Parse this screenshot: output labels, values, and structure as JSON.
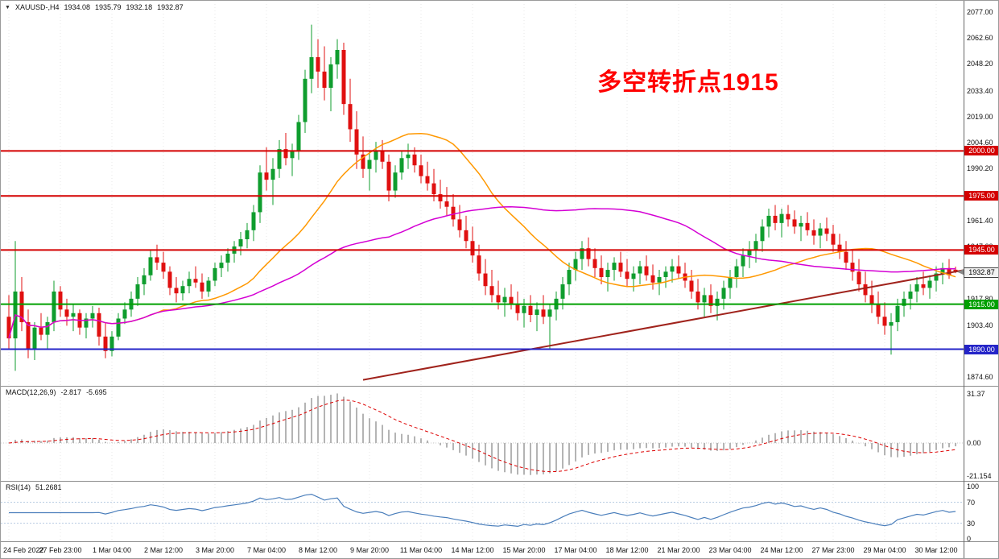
{
  "header": {
    "collapse_icon": "▼",
    "symbol": "XAUUSD-,H4",
    "open": "1934.08",
    "high": "1935.79",
    "low": "1932.18",
    "close": "1932.87"
  },
  "chart_data": {
    "type": "candlestick",
    "annotation": {
      "text": "多空转折点1915",
      "color": "#ff0000"
    },
    "price_axis": {
      "labels": [
        "2077.00",
        "2062.60",
        "2048.20",
        "2033.40",
        "2019.00",
        "2004.60",
        "1990.20",
        "1975.80",
        "1961.40",
        "1947.00",
        "1932.60",
        "1917.80",
        "1903.40",
        "1889.00",
        "1874.60"
      ],
      "top_value": 2077.0,
      "step": 14.4
    },
    "time_axis": {
      "labels": [
        "24 Feb 2022",
        "27 Feb 23:00",
        "1 Mar 04:00",
        "2 Mar 12:00",
        "3 Mar 20:00",
        "7 Mar 04:00",
        "8 Mar 12:00",
        "9 Mar 20:00",
        "11 Mar 04:00",
        "14 Mar 12:00",
        "15 Mar 20:00",
        "17 Mar 04:00",
        "18 Mar 12:00",
        "21 Mar 20:00",
        "23 Mar 04:00",
        "24 Mar 12:00",
        "27 Mar 23:00",
        "29 Mar 04:00",
        "30 Mar 12:00"
      ],
      "label_every_bars": 8
    },
    "candles": [
      [
        1908,
        1920,
        1890,
        1896
      ],
      [
        1896,
        1950,
        1878,
        1922
      ],
      [
        1922,
        1930,
        1900,
        1905
      ],
      [
        1905,
        1912,
        1885,
        1890
      ],
      [
        1890,
        1905,
        1884,
        1902
      ],
      [
        1902,
        1910,
        1895,
        1898
      ],
      [
        1898,
        1908,
        1890,
        1905
      ],
      [
        1905,
        1928,
        1900,
        1922
      ],
      [
        1922,
        1925,
        1908,
        1912
      ],
      [
        1912,
        1918,
        1903,
        1908
      ],
      [
        1908,
        1915,
        1900,
        1910
      ],
      [
        1910,
        1912,
        1898,
        1902
      ],
      [
        1902,
        1910,
        1896,
        1907
      ],
      [
        1907,
        1914,
        1902,
        1910
      ],
      [
        1910,
        1913,
        1892,
        1897
      ],
      [
        1897,
        1905,
        1885,
        1889
      ],
      [
        1889,
        1900,
        1886,
        1897
      ],
      [
        1897,
        1910,
        1895,
        1907
      ],
      [
        1907,
        1916,
        1904,
        1912
      ],
      [
        1912,
        1922,
        1908,
        1918
      ],
      [
        1918,
        1930,
        1914,
        1926
      ],
      [
        1926,
        1935,
        1920,
        1931
      ],
      [
        1931,
        1945,
        1928,
        1941
      ],
      [
        1941,
        1948,
        1934,
        1938
      ],
      [
        1938,
        1944,
        1929,
        1933
      ],
      [
        1933,
        1936,
        1920,
        1924
      ],
      [
        1924,
        1930,
        1916,
        1921
      ],
      [
        1921,
        1928,
        1917,
        1925
      ],
      [
        1925,
        1933,
        1921,
        1929
      ],
      [
        1929,
        1936,
        1924,
        1927
      ],
      [
        1927,
        1932,
        1918,
        1922
      ],
      [
        1922,
        1930,
        1919,
        1928
      ],
      [
        1928,
        1938,
        1925,
        1935
      ],
      [
        1935,
        1942,
        1930,
        1938
      ],
      [
        1938,
        1946,
        1933,
        1943
      ],
      [
        1943,
        1950,
        1938,
        1947
      ],
      [
        1947,
        1955,
        1942,
        1951
      ],
      [
        1951,
        1960,
        1946,
        1956
      ],
      [
        1956,
        1970,
        1950,
        1966
      ],
      [
        1966,
        1992,
        1960,
        1988
      ],
      [
        1988,
        2002,
        1978,
        1984
      ],
      [
        1984,
        1996,
        1970,
        1990
      ],
      [
        1990,
        2006,
        1985,
        2001
      ],
      [
        2001,
        2010,
        1992,
        1996
      ],
      [
        1996,
        2004,
        1986,
        2000
      ],
      [
        2000,
        2020,
        1995,
        2016
      ],
      [
        2016,
        2045,
        2010,
        2040
      ],
      [
        2040,
        2070,
        2032,
        2052
      ],
      [
        2052,
        2062,
        2035,
        2044
      ],
      [
        2044,
        2058,
        2028,
        2035
      ],
      [
        2035,
        2052,
        2022,
        2048
      ],
      [
        2048,
        2062,
        2040,
        2056
      ],
      [
        2056,
        2060,
        2020,
        2026
      ],
      [
        2026,
        2040,
        2005,
        2012
      ],
      [
        2012,
        2022,
        1990,
        1998
      ],
      [
        1998,
        2008,
        1985,
        1990
      ],
      [
        1990,
        2000,
        1978,
        1995
      ],
      [
        1995,
        2005,
        1988,
        2000
      ],
      [
        2000,
        2006,
        1990,
        1994
      ],
      [
        1994,
        1998,
        1972,
        1978
      ],
      [
        1978,
        1992,
        1974,
        1988
      ],
      [
        1988,
        2000,
        1984,
        1996
      ],
      [
        1996,
        2004,
        1990,
        1998
      ],
      [
        1998,
        2002,
        1988,
        1992
      ],
      [
        1992,
        1998,
        1982,
        1986
      ],
      [
        1986,
        1994,
        1978,
        1982
      ],
      [
        1982,
        1990,
        1972,
        1976
      ],
      [
        1976,
        1984,
        1968,
        1972
      ],
      [
        1972,
        1980,
        1964,
        1969
      ],
      [
        1969,
        1976,
        1958,
        1962
      ],
      [
        1962,
        1970,
        1952,
        1956
      ],
      [
        1956,
        1964,
        1946,
        1950
      ],
      [
        1950,
        1958,
        1938,
        1942
      ],
      [
        1942,
        1948,
        1928,
        1932
      ],
      [
        1932,
        1940,
        1920,
        1925
      ],
      [
        1925,
        1934,
        1916,
        1920
      ],
      [
        1920,
        1928,
        1912,
        1916
      ],
      [
        1916,
        1924,
        1908,
        1919
      ],
      [
        1919,
        1926,
        1912,
        1915
      ],
      [
        1915,
        1922,
        1906,
        1910
      ],
      [
        1910,
        1918,
        1902,
        1914
      ],
      [
        1914,
        1920,
        1905,
        1909
      ],
      [
        1909,
        1916,
        1900,
        1912
      ],
      [
        1912,
        1920,
        1904,
        1908
      ],
      [
        1908,
        1915,
        1890,
        1912
      ],
      [
        1912,
        1922,
        1906,
        1918
      ],
      [
        1918,
        1930,
        1912,
        1926
      ],
      [
        1926,
        1938,
        1920,
        1934
      ],
      [
        1934,
        1944,
        1928,
        1940
      ],
      [
        1940,
        1950,
        1934,
        1946
      ],
      [
        1946,
        1952,
        1936,
        1940
      ],
      [
        1940,
        1946,
        1930,
        1935
      ],
      [
        1935,
        1942,
        1926,
        1930
      ],
      [
        1930,
        1938,
        1922,
        1934
      ],
      [
        1934,
        1941,
        1928,
        1938
      ],
      [
        1938,
        1944,
        1930,
        1933
      ],
      [
        1933,
        1940,
        1925,
        1929
      ],
      [
        1929,
        1936,
        1922,
        1932
      ],
      [
        1932,
        1939,
        1926,
        1936
      ],
      [
        1936,
        1942,
        1928,
        1931
      ],
      [
        1931,
        1937,
        1923,
        1927
      ],
      [
        1927,
        1934,
        1920,
        1930
      ],
      [
        1930,
        1936,
        1924,
        1933
      ],
      [
        1933,
        1940,
        1927,
        1936
      ],
      [
        1936,
        1942,
        1929,
        1932
      ],
      [
        1932,
        1938,
        1924,
        1928
      ],
      [
        1928,
        1934,
        1918,
        1922
      ],
      [
        1922,
        1929,
        1912,
        1916
      ],
      [
        1916,
        1924,
        1908,
        1920
      ],
      [
        1920,
        1926,
        1910,
        1914
      ],
      [
        1914,
        1922,
        1906,
        1918
      ],
      [
        1918,
        1928,
        1912,
        1924
      ],
      [
        1924,
        1934,
        1918,
        1930
      ],
      [
        1930,
        1940,
        1924,
        1936
      ],
      [
        1936,
        1946,
        1930,
        1942
      ],
      [
        1942,
        1950,
        1935,
        1945
      ],
      [
        1945,
        1954,
        1938,
        1950
      ],
      [
        1950,
        1962,
        1944,
        1958
      ],
      [
        1958,
        1968,
        1952,
        1964
      ],
      [
        1964,
        1970,
        1956,
        1960
      ],
      [
        1960,
        1968,
        1952,
        1965
      ],
      [
        1965,
        1970,
        1958,
        1962
      ],
      [
        1962,
        1967,
        1954,
        1958
      ],
      [
        1958,
        1964,
        1950,
        1960
      ],
      [
        1960,
        1966,
        1953,
        1956
      ],
      [
        1956,
        1962,
        1948,
        1953
      ],
      [
        1953,
        1960,
        1946,
        1957
      ],
      [
        1957,
        1963,
        1950,
        1954
      ],
      [
        1954,
        1959,
        1944,
        1948
      ],
      [
        1948,
        1954,
        1940,
        1944
      ],
      [
        1944,
        1950,
        1934,
        1938
      ],
      [
        1938,
        1945,
        1928,
        1933
      ],
      [
        1933,
        1940,
        1922,
        1926
      ],
      [
        1926,
        1933,
        1916,
        1920
      ],
      [
        1920,
        1928,
        1910,
        1915
      ],
      [
        1915,
        1922,
        1904,
        1908
      ],
      [
        1908,
        1916,
        1898,
        1903
      ],
      [
        1903,
        1910,
        1887,
        1905
      ],
      [
        1905,
        1918,
        1900,
        1914
      ],
      [
        1914,
        1922,
        1908,
        1918
      ],
      [
        1918,
        1926,
        1912,
        1922
      ],
      [
        1922,
        1930,
        1916,
        1926
      ],
      [
        1926,
        1933,
        1920,
        1924
      ],
      [
        1924,
        1931,
        1918,
        1928
      ],
      [
        1928,
        1936,
        1922,
        1932
      ],
      [
        1932,
        1938,
        1926,
        1935
      ],
      [
        1935,
        1940,
        1929,
        1931
      ],
      [
        1934.08,
        1935.79,
        1932.18,
        1932.87
      ]
    ],
    "colors": {
      "up": "#0f9d2e",
      "down": "#e01010",
      "ma_fast": "#ff9800",
      "ma_slow": "#d400d4",
      "grid": "#e7e7e7",
      "macd_hist": "#b4b4b4",
      "macd_signal": "#dd0000",
      "rsi_line": "#4a7ebb",
      "rsi_levels": "#b9cce2",
      "separator": "#8c8c8c"
    },
    "moving_averages": [
      {
        "name": "ma-fast",
        "period": 24,
        "color": "#ff9800"
      },
      {
        "name": "ma-slow",
        "period": 60,
        "color": "#d400d4"
      }
    ],
    "levels": [
      {
        "price": 2000.0,
        "label": "2000.00",
        "color": "#d40000"
      },
      {
        "price": 1975.0,
        "label": "1975.00",
        "color": "#d40000"
      },
      {
        "price": 1945.0,
        "label": "1945.00",
        "color": "#d40000"
      },
      {
        "price": 1915.0,
        "label": "1915.00",
        "color": "#00a000"
      },
      {
        "price": 1890.0,
        "label": "1890.00",
        "color": "#2424c8"
      }
    ],
    "trendline": {
      "start_bar": 55,
      "start_price": 1873,
      "end_bar": 150,
      "end_price": 1935,
      "color": "#a0231c"
    },
    "current_price": {
      "label": "1932.87",
      "value": 1932.87
    },
    "indicators": {
      "macd": {
        "name": "MACD(12,26,9)",
        "main_value": "-2.817",
        "signal_value": "-5.695",
        "fast": 12,
        "slow": 26,
        "signal": 9,
        "axis_labels": [
          {
            "text": "31.37",
            "value": 31.37
          },
          {
            "text": "0.00",
            "value": 0
          },
          {
            "text": "-21.154",
            "value": -21.154
          }
        ]
      },
      "rsi": {
        "name": "RSI(14)",
        "value": "51.2681",
        "period": 14,
        "axis_labels": [
          {
            "text": "100",
            "value": 100
          },
          {
            "text": "70",
            "value": 70
          },
          {
            "text": "30",
            "value": 30
          },
          {
            "text": "0",
            "value": 0
          }
        ],
        "level_lines": [
          70,
          30
        ]
      }
    },
    "ylim": [
      1869.7,
      2083.3
    ],
    "legend_position": "none",
    "grid": "vertical-dotted"
  }
}
